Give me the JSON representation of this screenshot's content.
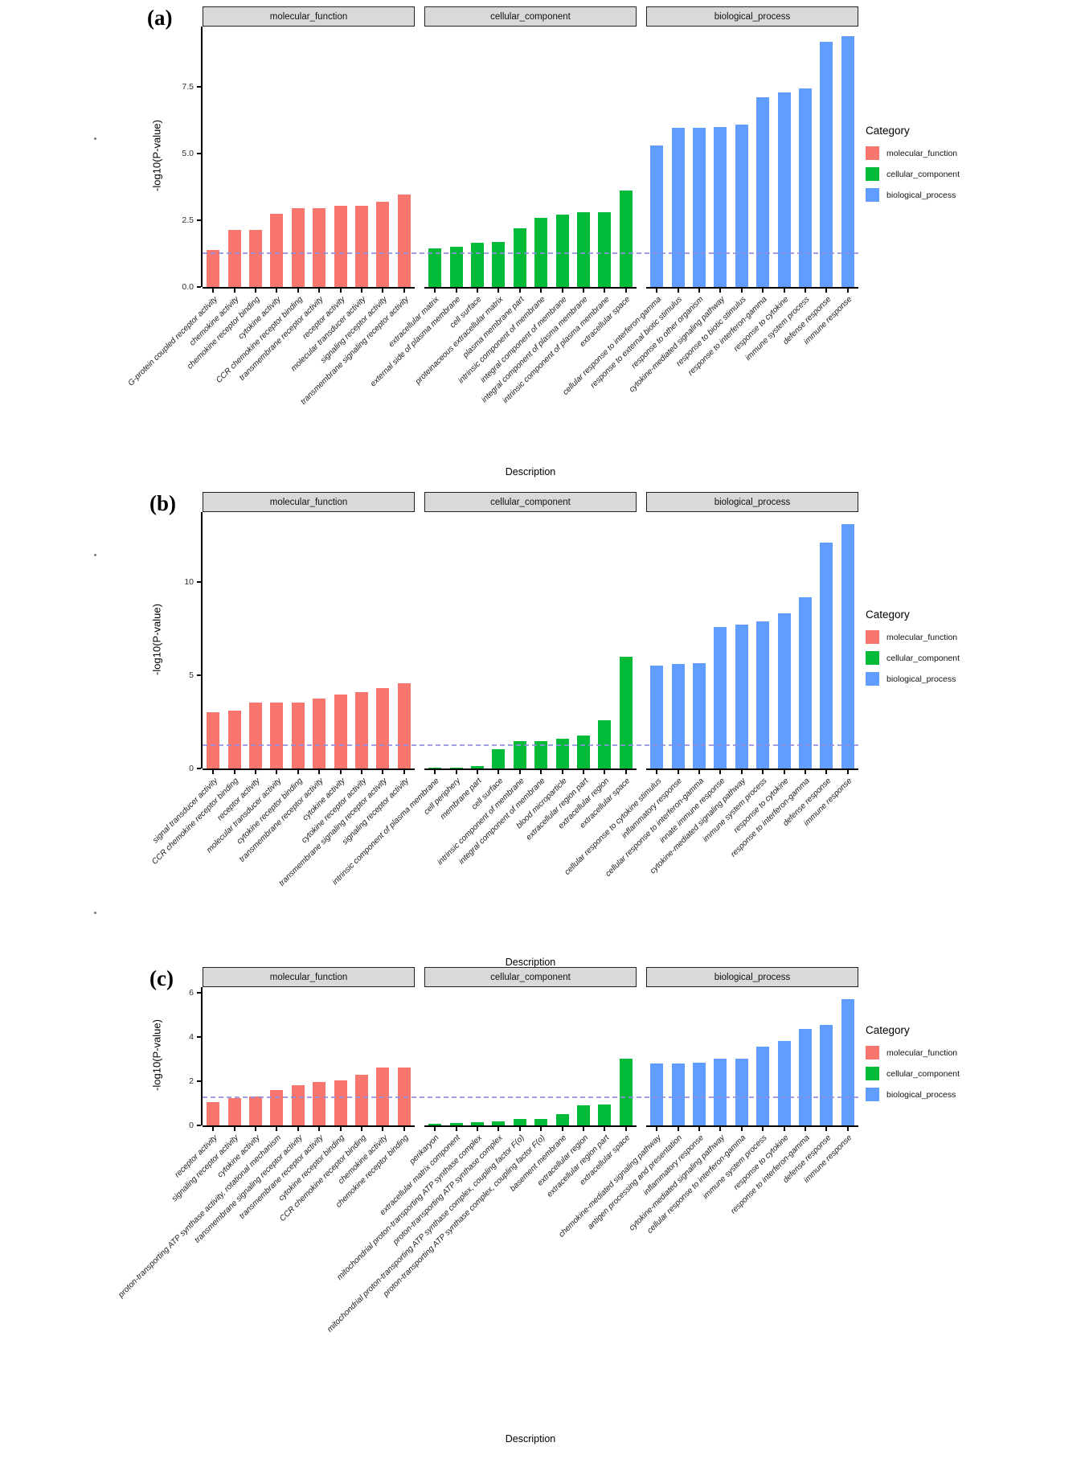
{
  "figure": {
    "y_axis_title": "-log10(P-value)",
    "x_axis_title": "Description",
    "significance_line_value": 1.3,
    "colors": {
      "molecular_function": "#F8766D",
      "cellular_component": "#00BA38",
      "biological_process": "#619CFF",
      "facet_header_bg": "#D9D9D9",
      "significance_line": "#8F8FE0"
    },
    "legend": {
      "title": "Category",
      "items": [
        {
          "label": "molecular_function",
          "color": "#F8766D"
        },
        {
          "label": "cellular_component",
          "color": "#00BA38"
        },
        {
          "label": "biological_process",
          "color": "#619CFF"
        }
      ]
    }
  },
  "chart_data": [
    {
      "type": "bar",
      "panel_label": "(a)",
      "ylabel": "-log10(P-value)",
      "xlabel": "Description",
      "y_ticks": [
        {
          "value": 0,
          "label": "0.0"
        },
        {
          "value": 2.5,
          "label": "2.5"
        },
        {
          "value": 5,
          "label": "5.0"
        },
        {
          "value": 7.5,
          "label": "7.5"
        }
      ],
      "ylim": [
        0,
        9.76
      ],
      "facets": [
        {
          "name": "molecular_function",
          "categories": [
            "G-protein coupled receptor activity",
            "chemokine activity",
            "chemokine receptor binding",
            "cytokine activity",
            "CCR chemokine receptor binding",
            "transmembrane receptor activity",
            "receptor activity",
            "molecular transducer activity",
            "signaling receptor activity",
            "transmembrane signaling receptor activity"
          ],
          "values": [
            1.4,
            2.15,
            2.15,
            2.75,
            2.95,
            2.95,
            3.05,
            3.05,
            3.2,
            3.45
          ]
        },
        {
          "name": "cellular_component",
          "categories": [
            "extracellular matrix",
            "external side of plasma membrane",
            "cell surface",
            "proteinaceous extracellular matrix",
            "plasma membrane part",
            "intrinsic component of membrane",
            "integral component of membrane",
            "integral component of plasma membrane",
            "intrinsic component of plasma membrane",
            "extracellular space"
          ],
          "values": [
            1.45,
            1.5,
            1.65,
            1.7,
            2.2,
            2.6,
            2.7,
            2.8,
            2.8,
            3.6
          ]
        },
        {
          "name": "biological_process",
          "categories": [
            "cellular response to interferon-gamma",
            "response to external biotic stimulus",
            "response to other organism",
            "cytokine-mediated signaling pathway",
            "response to biotic stimulus",
            "response to interferon-gamma",
            "response to cytokine",
            "immune system process",
            "defense response",
            "immune response"
          ],
          "values": [
            5.3,
            5.95,
            5.95,
            6.0,
            6.1,
            7.1,
            7.3,
            7.45,
            9.2,
            9.4
          ]
        }
      ]
    },
    {
      "type": "bar",
      "panel_label": "(b)",
      "ylabel": "-log10(P-value)",
      "xlabel": "Description",
      "y_ticks": [
        {
          "value": 0,
          "label": "0"
        },
        {
          "value": 5,
          "label": "5"
        },
        {
          "value": 10,
          "label": "10"
        }
      ],
      "ylim": [
        0,
        13.75
      ],
      "facets": [
        {
          "name": "molecular_function",
          "categories": [
            "signal transducer activity",
            "CCR chemokine receptor binding",
            "receptor activity",
            "molecular transducer activity",
            "cytokine receptor binding",
            "transmembrane receptor activity",
            "cytokine activity",
            "cytokine receptor activity",
            "transmembrane signaling receptor activity",
            "signaling receptor activity"
          ],
          "values": [
            3.0,
            3.1,
            3.55,
            3.55,
            3.55,
            3.75,
            3.95,
            4.1,
            4.3,
            4.55
          ]
        },
        {
          "name": "cellular_component",
          "categories": [
            "intrinsic component of plasma membrane",
            "cell periphery",
            "membrane part",
            "cell surface",
            "intrinsic component of membrane",
            "integral component of membrane",
            "blood microparticle",
            "extracellular region part",
            "extracellular region",
            "extracellular space"
          ],
          "values": [
            0.06,
            0.06,
            0.12,
            1.05,
            1.45,
            1.45,
            1.6,
            1.75,
            2.6,
            6.0
          ]
        },
        {
          "name": "biological_process",
          "categories": [
            "cellular response to cytokine stimulus",
            "inflammatory response",
            "cellular response to interferon-gamma",
            "innate immune response",
            "cytokine-mediated signaling pathway",
            "immune system process",
            "response to cytokine",
            "response to interferon-gamma",
            "defense response",
            "immune response"
          ],
          "values": [
            5.5,
            5.6,
            5.65,
            7.6,
            7.7,
            7.9,
            8.3,
            9.2,
            12.1,
            13.1
          ]
        }
      ]
    },
    {
      "type": "bar",
      "panel_label": "(c)",
      "ylabel": "-log10(P-value)",
      "xlabel": "Description",
      "y_ticks": [
        {
          "value": 0,
          "label": "0"
        },
        {
          "value": 2,
          "label": "2"
        },
        {
          "value": 4,
          "label": "4"
        },
        {
          "value": 6,
          "label": "6"
        }
      ],
      "ylim": [
        0,
        6.25
      ],
      "facets": [
        {
          "name": "molecular_function",
          "categories": [
            "receptor activity",
            "signaling receptor activity",
            "cytokine activity",
            "proton-transporting ATP synthase activity, rotational mechanism",
            "transmembrane signaling receptor activity",
            "transmembrane receptor activity",
            "cytokine receptor binding",
            "CCR chemokine receptor binding",
            "chemokine activity",
            "chemokine receptor binding"
          ],
          "values": [
            1.05,
            1.25,
            1.3,
            1.6,
            1.8,
            1.95,
            2.05,
            2.3,
            2.6,
            2.6
          ]
        },
        {
          "name": "cellular_component",
          "categories": [
            "perikaryon",
            "extracellular matrix component",
            "mitochondrial proton-transporting ATP synthase complex",
            "proton-transporting ATP synthase complex",
            "mitochondrial proton-transporting ATP synthase complex, coupling factor F(o)",
            "proton-transporting ATP synthase complex, coupling factor F(o)",
            "basement membrane",
            "extracellular region",
            "extracellular region part",
            "extracellular space"
          ],
          "values": [
            0.06,
            0.12,
            0.15,
            0.17,
            0.3,
            0.3,
            0.5,
            0.9,
            0.95,
            3.0
          ]
        },
        {
          "name": "biological_process",
          "categories": [
            "chemokine-mediated signaling pathway",
            "antigen processing and presentation",
            "inflammatory response",
            "cytokine-mediated signaling pathway",
            "cellular response to interferon-gamma",
            "immune system process",
            "response to cytokine",
            "response to interferon-gamma",
            "defense response",
            "immune response"
          ],
          "values": [
            2.8,
            2.8,
            2.85,
            3.0,
            3.0,
            3.55,
            3.8,
            4.35,
            4.55,
            5.7
          ]
        }
      ]
    }
  ]
}
